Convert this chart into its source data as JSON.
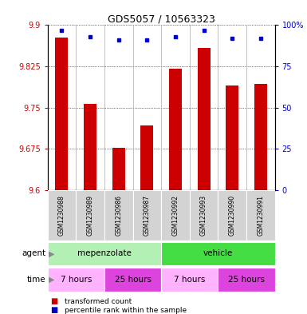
{
  "title": "GDS5057 / 10563323",
  "samples": [
    "GSM1230988",
    "GSM1230989",
    "GSM1230986",
    "GSM1230987",
    "GSM1230992",
    "GSM1230993",
    "GSM1230990",
    "GSM1230991"
  ],
  "red_values": [
    9.878,
    9.757,
    9.676,
    9.717,
    9.82,
    9.858,
    9.79,
    9.793
  ],
  "blue_values": [
    97,
    93,
    91,
    91,
    93,
    97,
    92,
    92
  ],
  "ymin": 9.6,
  "ymax": 9.9,
  "yticks": [
    9.6,
    9.675,
    9.75,
    9.825,
    9.9
  ],
  "ytick_labels": [
    "9.6",
    "9.675",
    "9.75",
    "9.825",
    "9.9"
  ],
  "y2ticks": [
    0,
    25,
    50,
    75,
    100
  ],
  "y2tick_labels": [
    "0",
    "25",
    "50",
    "75",
    "100%"
  ],
  "bar_color": "#cc0000",
  "dot_color": "#0000cc",
  "tick_color_left": "#cc0000",
  "tick_color_right": "#0000cc",
  "xlabel_gray_bg": "#d3d3d3",
  "agent_light_green": "#b3f0b3",
  "agent_dark_green": "#44dd44",
  "time_light_pink": "#ffb3ff",
  "time_violet": "#dd44dd",
  "fig_width": 3.85,
  "fig_height": 3.93
}
